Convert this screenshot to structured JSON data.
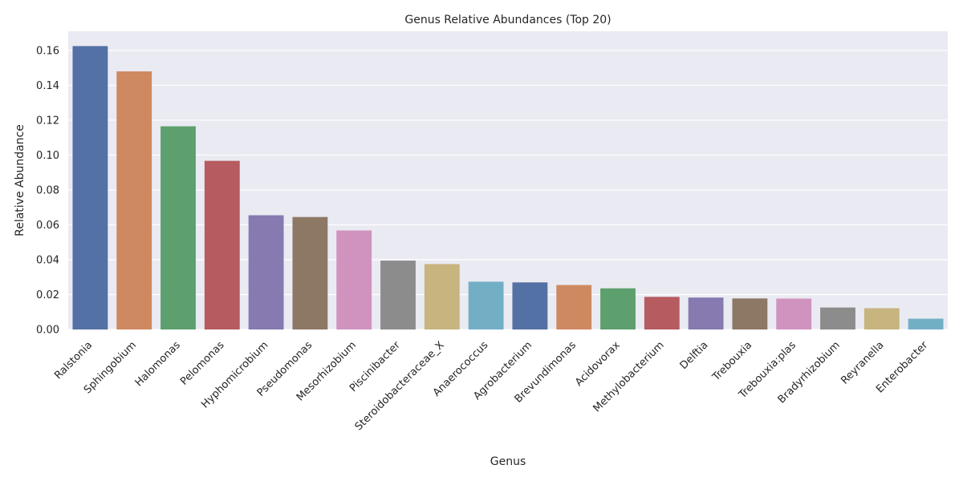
{
  "chart_data": {
    "type": "bar",
    "title": "Genus Relative Abundances (Top 20)",
    "xlabel": "Genus",
    "ylabel": "Relative Abundance",
    "ylim": [
      0,
      0.171
    ],
    "yticks": [
      0.0,
      0.02,
      0.04,
      0.06,
      0.08,
      0.1,
      0.12,
      0.14,
      0.16
    ],
    "ytick_labels": [
      "0.00",
      "0.02",
      "0.04",
      "0.06",
      "0.08",
      "0.10",
      "0.12",
      "0.14",
      "0.16"
    ],
    "grid": true,
    "categories": [
      "Ralstonia",
      "Sphingobium",
      "Halomonas",
      "Pelomonas",
      "Hyphomicrobium",
      "Pseudomonas",
      "Mesorhizobium",
      "Piscinibacter",
      "Steroidobacteraceae_X",
      "Anaerococcus",
      "Agrobacterium",
      "Brevundimonas",
      "Acidovorax",
      "Methylobacterium",
      "Delftia",
      "Trebouxia",
      "Trebouxia:plas",
      "Bradyrhizobium",
      "Reyranella",
      "Enterobacter"
    ],
    "values": [
      0.1625,
      0.148,
      0.1165,
      0.0967,
      0.0655,
      0.0645,
      0.0568,
      0.0395,
      0.0375,
      0.0274,
      0.027,
      0.0255,
      0.0236,
      0.0187,
      0.0183,
      0.0178,
      0.0177,
      0.0126,
      0.0122,
      0.0062
    ],
    "colors": [
      "#5471a5",
      "#cf8961",
      "#5d9f6d",
      "#b65b5f",
      "#867ab0",
      "#8d7866",
      "#d093bf",
      "#8c8c8c",
      "#c7b47e",
      "#72afc5",
      "#5471a5",
      "#cf8961",
      "#5d9f6d",
      "#b65b5f",
      "#867ab0",
      "#8d7866",
      "#d093bf",
      "#8c8c8c",
      "#c7b47e",
      "#72afc5"
    ],
    "background_color": "#eaeaf2",
    "grid_color": "#ffffff"
  }
}
